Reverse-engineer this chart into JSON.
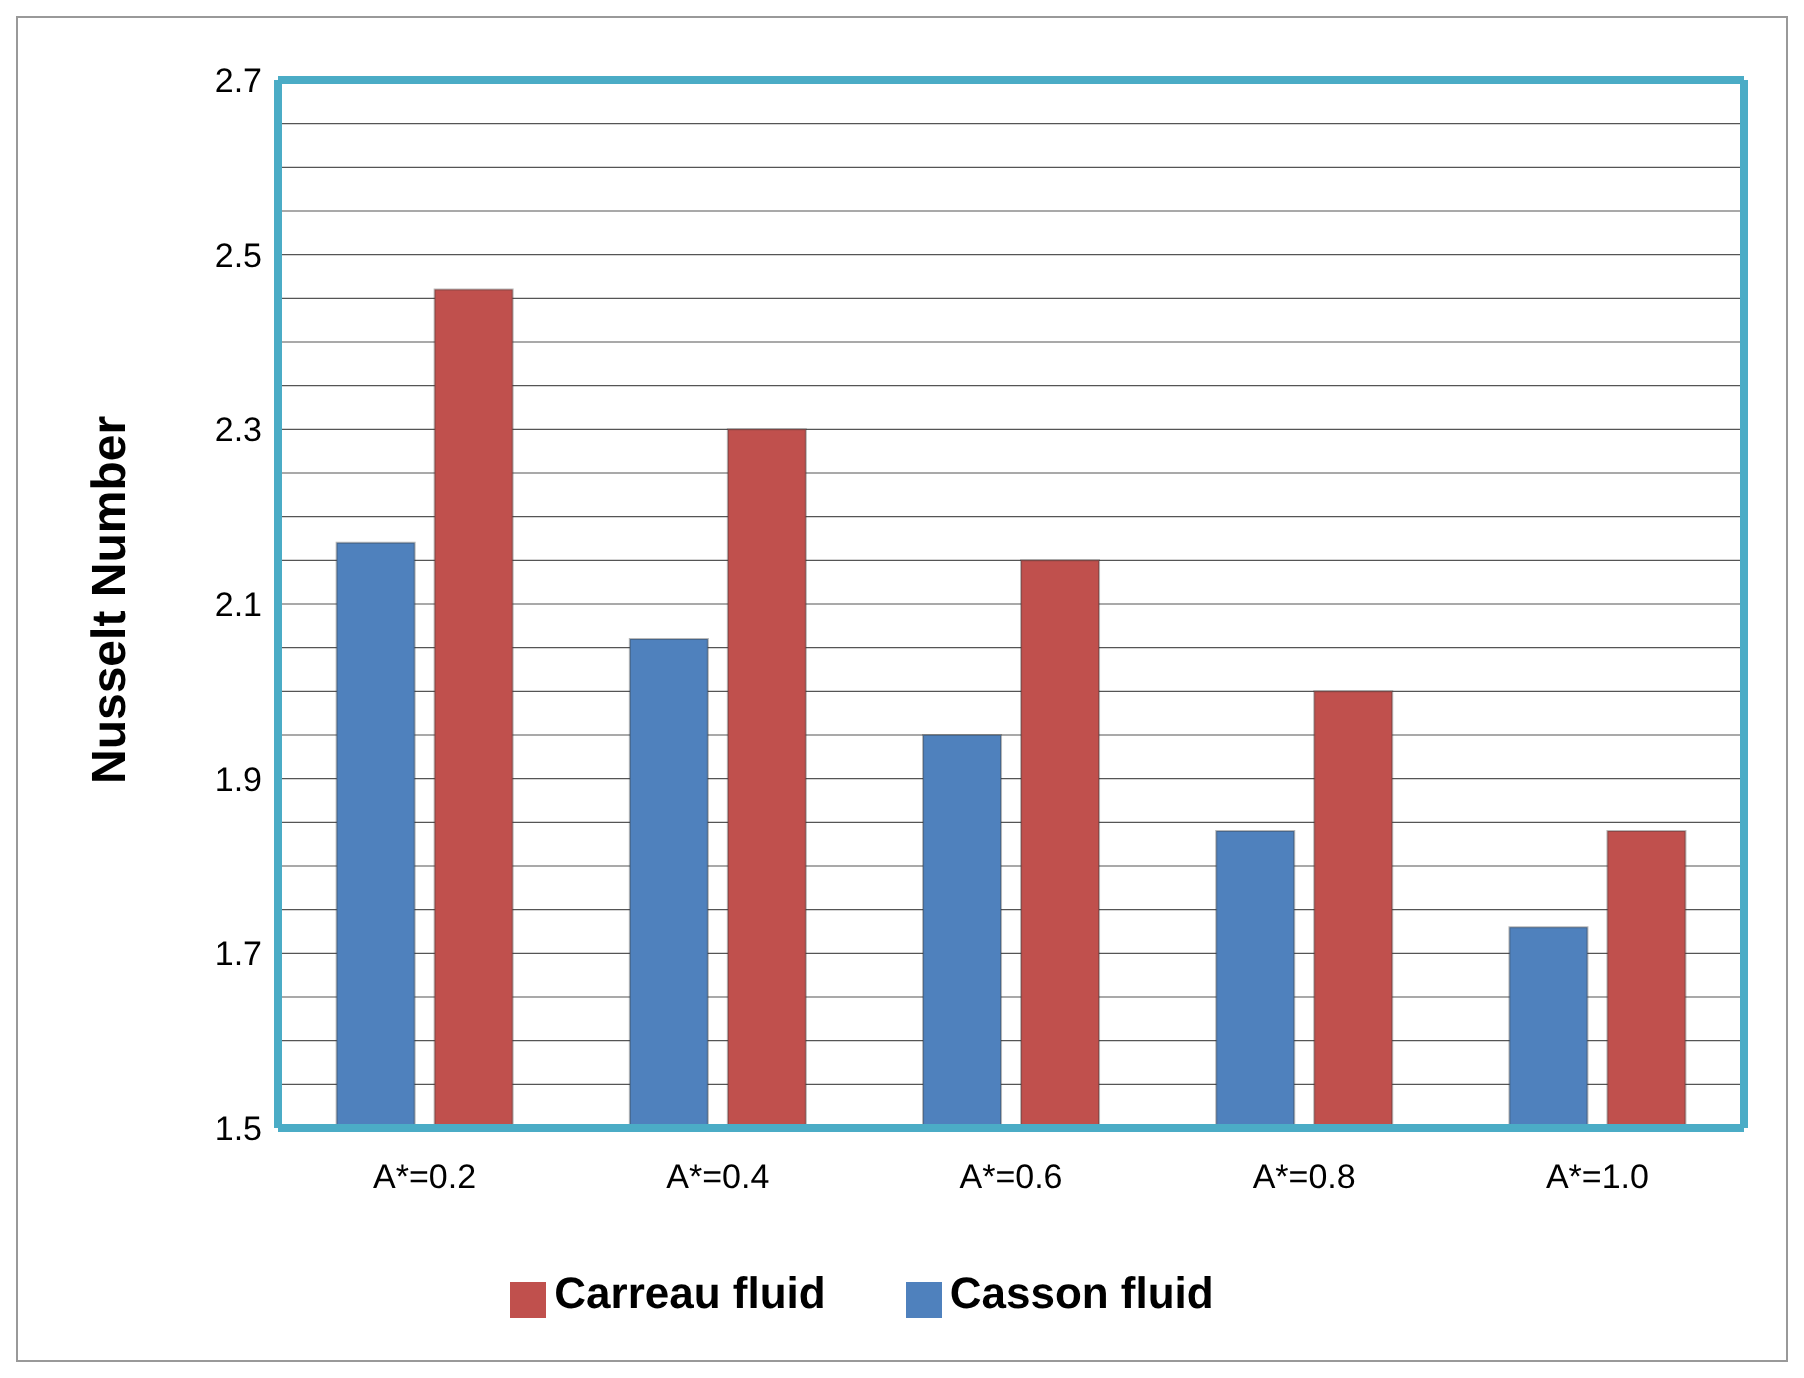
{
  "chart_data": {
    "type": "bar",
    "ylabel": "Nusselt Number",
    "categories": [
      "A*=0.2",
      "A*=0.4",
      "A*=0.6",
      "A*=0.8",
      "A*=1.0"
    ],
    "series": [
      {
        "name": "Casson fluid",
        "color": "#4f81bd",
        "values": [
          2.17,
          2.06,
          1.95,
          1.84,
          1.73
        ]
      },
      {
        "name": "Carreau fluid",
        "color": "#c0504d",
        "values": [
          2.46,
          2.3,
          2.15,
          2.0,
          1.84
        ]
      }
    ],
    "ylim": [
      1.5,
      2.7
    ],
    "yticks": [
      1.5,
      {
        "value": 1.55,
        "label": null
      },
      {
        "value": 1.6,
        "label": null
      },
      {
        "value": 1.65,
        "label": null
      },
      1.7,
      {
        "value": 1.75,
        "label": null
      },
      {
        "value": 1.8,
        "label": null
      },
      {
        "value": 1.85,
        "label": null
      },
      1.9,
      {
        "value": 1.95,
        "label": null
      },
      {
        "value": 2.0,
        "label": null
      },
      {
        "value": 2.05,
        "label": null
      },
      2.1,
      {
        "value": 2.15,
        "label": null
      },
      {
        "value": 2.2,
        "label": null
      },
      {
        "value": 2.25,
        "label": null
      },
      2.3,
      {
        "value": 2.35,
        "label": null
      },
      {
        "value": 2.4,
        "label": null
      },
      {
        "value": 2.45,
        "label": null
      },
      2.5,
      {
        "value": 2.55,
        "label": null
      },
      {
        "value": 2.6,
        "label": null
      },
      {
        "value": 2.65,
        "label": null
      },
      2.7
    ],
    "grid": "y",
    "legend": "bottom"
  }
}
